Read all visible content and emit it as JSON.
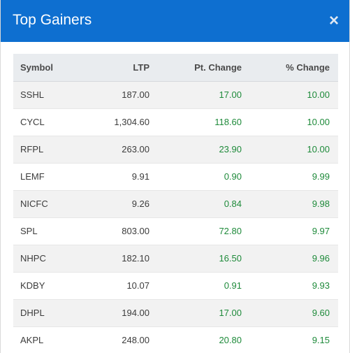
{
  "modal": {
    "title": "Top Gainers",
    "close_label": "×"
  },
  "table": {
    "headers": {
      "symbol": "Symbol",
      "ltp": "LTP",
      "pt_change": "Pt. Change",
      "pct_change": "% Change"
    },
    "rows": [
      {
        "symbol": "SSHL",
        "ltp": "187.00",
        "pt_change": "17.00",
        "pct_change": "10.00"
      },
      {
        "symbol": "CYCL",
        "ltp": "1,304.60",
        "pt_change": "118.60",
        "pct_change": "10.00"
      },
      {
        "symbol": "RFPL",
        "ltp": "263.00",
        "pt_change": "23.90",
        "pct_change": "10.00"
      },
      {
        "symbol": "LEMF",
        "ltp": "9.91",
        "pt_change": "0.90",
        "pct_change": "9.99"
      },
      {
        "symbol": "NICFC",
        "ltp": "9.26",
        "pt_change": "0.84",
        "pct_change": "9.98"
      },
      {
        "symbol": "SPL",
        "ltp": "803.00",
        "pt_change": "72.80",
        "pct_change": "9.97"
      },
      {
        "symbol": "NHPC",
        "ltp": "182.10",
        "pt_change": "16.50",
        "pct_change": "9.96"
      },
      {
        "symbol": "KDBY",
        "ltp": "10.07",
        "pt_change": "0.91",
        "pct_change": "9.93"
      },
      {
        "symbol": "DHPL",
        "ltp": "194.00",
        "pt_change": "17.00",
        "pct_change": "9.60"
      },
      {
        "symbol": "AKPL",
        "ltp": "248.00",
        "pt_change": "20.80",
        "pct_change": "9.15"
      }
    ]
  },
  "colors": {
    "header_bg": "#0e6fd0",
    "gain": "#1e8a3a"
  }
}
